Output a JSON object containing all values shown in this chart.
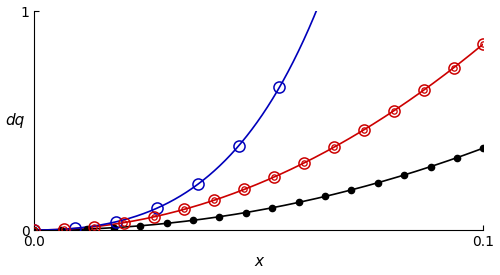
{
  "xlim": [
    0.0,
    0.1
  ],
  "ylim": [
    0.0,
    1.0
  ],
  "xlabel": "x",
  "ylabel": "dq",
  "xlabel_fontsize": 11,
  "ylabel_fontsize": 11,
  "tick_fontsize": 10,
  "black_color": "#000000",
  "red_color": "#cc0000",
  "blue_color": "#0000bb",
  "background_color": "#ffffff",
  "n_black_points": 18,
  "n_red_points": 16,
  "n_blue_points": 12,
  "black_a": 42.0,
  "black_exp": 2.0,
  "red_a": 85.0,
  "red_exp": 2.0,
  "blue_a": 82.0,
  "blue_exp": 2.0,
  "blue_growth": 18.0
}
